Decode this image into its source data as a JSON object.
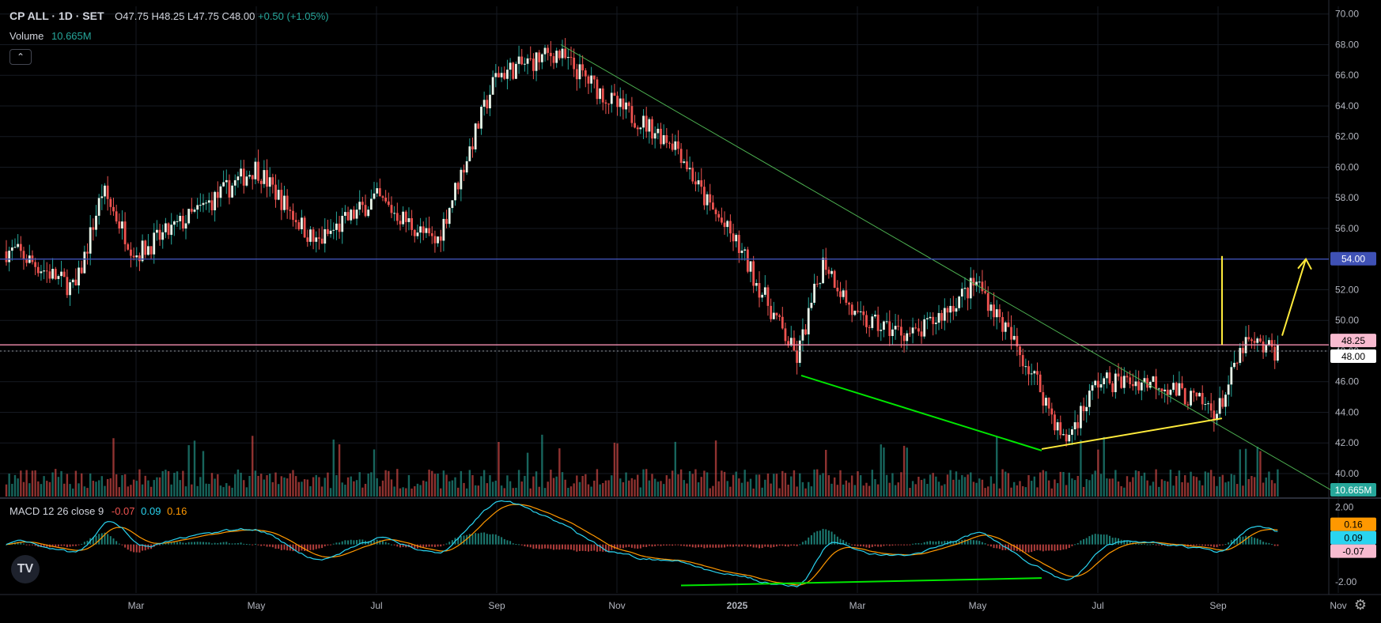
{
  "header": {
    "symbol": "CP ALL · 1D · SET",
    "open_label": "O",
    "open": "47.75",
    "high_label": "H",
    "high": "48.25",
    "low_label": "L",
    "low": "47.75",
    "close_label": "C",
    "close": "48.00",
    "change": "+0.50 (+1.05%)",
    "volume_label": "Volume",
    "volume_value": "10.665M",
    "collapse_glyph": "⌃"
  },
  "macd_legend": {
    "label": "MACD 12 26 close 9",
    "hist": "-0.07",
    "macd": "0.09",
    "signal": "0.16"
  },
  "colors": {
    "up": "#26a69a",
    "down": "#ef5350",
    "macd_line": "#2ad4f0",
    "signal_line": "#ff9800",
    "trend_green": "#4caf50",
    "bright_green": "#00e600",
    "yellow": "#ffeb3b",
    "support_blue": "#3f51b5"
  },
  "chart_data": [
    {
      "type": "candlestick",
      "title": "CP ALL · 1D · SET",
      "x_ticks": [
        "Mar",
        "May",
        "Jul",
        "Sep",
        "Nov",
        "2025",
        "Mar",
        "May",
        "Jul",
        "Sep",
        "Nov"
      ],
      "y_ticks": [
        "40.00",
        "42.00",
        "44.00",
        "46.00",
        "48.00",
        "50.00",
        "52.00",
        "54.00",
        "56.00",
        "58.00",
        "60.00",
        "62.00",
        "64.00",
        "66.00",
        "68.00",
        "70.00"
      ],
      "ylim": [
        38.5,
        70.5
      ],
      "last_price": "48.00",
      "price_badges": [
        {
          "value": "54.00",
          "role": "horizontal line"
        },
        {
          "value": "48.25",
          "role": "high"
        },
        {
          "value": "48.00",
          "role": "close"
        }
      ],
      "close_path": [
        [
          "Jan-2024",
          54.5
        ],
        [
          "Feb-2024",
          52
        ],
        [
          "Feb-2024",
          58.5
        ],
        [
          "Mar-2024",
          54.3
        ],
        [
          "Apr-2024",
          57
        ],
        [
          "May-2024",
          60
        ],
        [
          "Jun-2024",
          55
        ],
        [
          "Jul-2024",
          58
        ],
        [
          "Aug-2024",
          55
        ],
        [
          "Aug-2024",
          60
        ],
        [
          "Sep-2024",
          66
        ],
        [
          "Oct-2024",
          67.5
        ],
        [
          "Nov-2024",
          64
        ],
        [
          "Dec-2024",
          61.5
        ],
        [
          "Dec-2024",
          58
        ],
        [
          "Jan-2025",
          55
        ],
        [
          "Feb-2025",
          47.5
        ],
        [
          "Feb-2025",
          54
        ],
        [
          "Mar-2025",
          50
        ],
        [
          "Apr-2025",
          49
        ],
        [
          "May-2025",
          52.5
        ],
        [
          "Jun-2025",
          46
        ],
        [
          "Jun-2025",
          42
        ],
        [
          "Jul-2025",
          46
        ],
        [
          "Aug-2025",
          46
        ],
        [
          "Sep-2025",
          44
        ],
        [
          "Sep-2025",
          48.5
        ],
        [
          "Oct-2025",
          48
        ]
      ],
      "volume_value": "10.665M",
      "drawings": [
        {
          "name": "downtrend-line",
          "from": [
            "Oct-2024",
            68
          ],
          "to": [
            "Nov-2025",
            38.5
          ],
          "color": "green"
        },
        {
          "name": "support-line",
          "price": 54.0,
          "color": "blue"
        },
        {
          "name": "resistance-line",
          "price": 48.4,
          "color": "pink"
        },
        {
          "name": "price-divergence-line",
          "from": [
            "Feb-2025",
            46.4
          ],
          "to": [
            "Jun-2025",
            41.5
          ],
          "color": "bright-green"
        },
        {
          "name": "rising-wedge-line",
          "from": [
            "Jun-2025",
            41.6
          ],
          "to": [
            "Sep-2025",
            43.6
          ],
          "color": "yellow"
        },
        {
          "name": "target-vertical",
          "x": "Sep-2025",
          "from": 48.4,
          "to": 54.2,
          "color": "yellow"
        },
        {
          "name": "target-arrow",
          "from": [
            "Oct-2025",
            49
          ],
          "to": [
            "Oct-2025",
            54
          ],
          "color": "yellow"
        }
      ]
    },
    {
      "type": "line",
      "title": "MACD 12 26 close 9",
      "y_ticks": [
        "2.00",
        "-2.00"
      ],
      "ylim": [
        -2.6,
        2.4
      ],
      "series": [
        {
          "name": "MACD",
          "last": "0.09"
        },
        {
          "name": "Signal",
          "last": "0.16"
        },
        {
          "name": "Histogram",
          "last": "-0.07"
        }
      ],
      "drawings": [
        {
          "name": "macd-divergence-line",
          "from": [
            "Dec-2024",
            -2.2
          ],
          "to": [
            "Jun-2025",
            -1.8
          ],
          "color": "bright-green"
        }
      ]
    }
  ]
}
